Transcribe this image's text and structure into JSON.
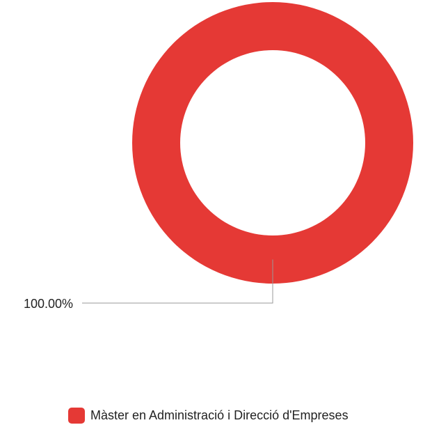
{
  "chart_data": {
    "type": "donut",
    "categories": [
      "Màster en Administració i Direcció d'Empreses"
    ],
    "values": [
      100
    ],
    "value_labels": [
      "100.00%"
    ],
    "colors": [
      "#e53935"
    ],
    "legend": "bottom"
  }
}
